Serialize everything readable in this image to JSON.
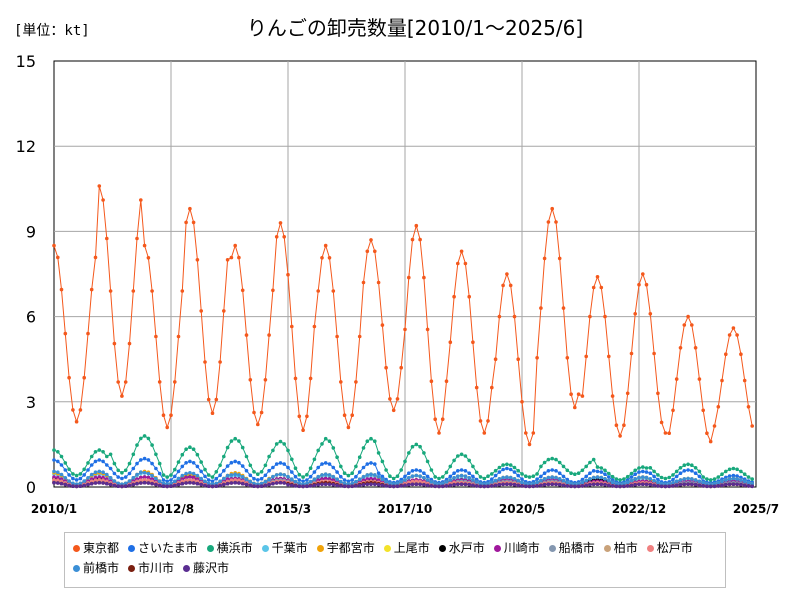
{
  "unit_label": "[単位：kt]",
  "chart_data": {
    "type": "line",
    "title": "りんごの卸売数量[2010/1～2025/6]",
    "ylim": [
      0,
      15
    ],
    "y_ticks": [
      "0",
      "3",
      "6",
      "9",
      "12",
      "15"
    ],
    "x_ticks": [
      "2010/1",
      "2012/8",
      "2015/3",
      "2017/10",
      "2020/5",
      "2022/12",
      "2025/7"
    ],
    "x_range": [
      "2010/1",
      "2025/7"
    ],
    "grid": true,
    "legend_position": "bottom",
    "series": [
      {
        "name": "東京都",
        "color": "#f4581c",
        "peaks": [
          8.5,
          10.6,
          8.5,
          9.8,
          8.5,
          9.3,
          8.5,
          8.7,
          9.2,
          8.3,
          7.5,
          9.8,
          7.4,
          7.5,
          6.0,
          5.6
        ],
        "troughs": [
          2.3,
          3.2,
          2.1,
          2.6,
          2.2,
          2.0,
          2.1,
          2.7,
          1.9,
          1.9,
          1.5,
          2.8,
          1.8,
          1.9,
          1.6,
          1.9
        ]
      },
      {
        "name": "さいたま市",
        "color": "#1f6fe5",
        "peaks": [
          0.95,
          1.0,
          0.9,
          0.9,
          0.85,
          0.85,
          0.6,
          0.6,
          0.65,
          0.6,
          0.55,
          0.6,
          0.4
        ],
        "troughs": [
          0.25,
          0.3,
          0.2,
          0.25,
          0.2,
          0.2,
          0.15,
          0.15,
          0.15,
          0.15,
          0.15,
          0.15,
          0.15
        ]
      },
      {
        "name": "横浜市",
        "color": "#18a87c",
        "peaks": [
          1.3,
          1.8,
          1.4,
          1.7,
          1.6,
          1.7,
          1.5,
          1.15,
          0.8,
          1.0,
          0.7,
          0.8,
          0.65
        ],
        "troughs": [
          0.4,
          0.5,
          0.35,
          0.45,
          0.35,
          0.4,
          0.3,
          0.3,
          0.35,
          0.45,
          0.25,
          0.3,
          0.25
        ]
      },
      {
        "name": "千葉市",
        "color": "#5bc5e8",
        "peaks": [
          0.45,
          0.5,
          0.4,
          0.45,
          0.4,
          0.4,
          0.3,
          0.3,
          0.3,
          0.3,
          0.25
        ],
        "troughs": [
          0.1,
          0.1,
          0.1,
          0.1,
          0.1,
          0.1,
          0.05,
          0.05,
          0.05,
          0.05,
          0.05
        ]
      },
      {
        "name": "宇都宮市",
        "color": "#f0a30a",
        "peaks": [
          0.5,
          0.55,
          0.45,
          0.5,
          0.45,
          0.45,
          0.4,
          0.4,
          0.35,
          0.35,
          0.35,
          0.3,
          0.3
        ],
        "troughs": [
          0.1,
          0.1,
          0.1,
          0.1,
          0.1,
          0.1,
          0.1,
          0.1,
          0.1,
          0.1,
          0.1,
          0.1,
          0.1
        ]
      },
      {
        "name": "上尾市",
        "color": "#f3e22a",
        "peaks": [
          0.2,
          0.2,
          0.2,
          0.2,
          0.15,
          0.15,
          0.15,
          0.15,
          0.1
        ],
        "troughs": [
          0.03,
          0.03,
          0.03,
          0.03,
          0.03,
          0.03,
          0.03,
          0.03,
          0.03
        ]
      },
      {
        "name": "水戸市",
        "color": "#000000",
        "peaks": [
          0.3,
          0.35,
          0.3,
          0.3,
          0.25,
          0.25,
          0.25,
          0.25,
          0.2,
          0.2
        ],
        "troughs": [
          0.05,
          0.05,
          0.05,
          0.05,
          0.05,
          0.05,
          0.05,
          0.05,
          0.05,
          0.05
        ]
      },
      {
        "name": "川崎市",
        "color": "#a0189c",
        "peaks": [
          0.35,
          0.35,
          0.3,
          0.3,
          0.25,
          0.25,
          0.2,
          0.2
        ],
        "troughs": [
          0.05,
          0.05,
          0.05,
          0.05,
          0.05,
          0.05,
          0.05,
          0.05
        ]
      },
      {
        "name": "船橋市",
        "color": "#8497b0",
        "peaks": [
          0.25,
          0.25,
          0.25,
          0.2,
          0.2,
          0.2,
          0.15,
          0.15
        ],
        "troughs": [
          0.05,
          0.05,
          0.05,
          0.05,
          0.05,
          0.05,
          0.05,
          0.05
        ]
      },
      {
        "name": "柏市",
        "color": "#c9a27a",
        "peaks": [
          0.2,
          0.2,
          0.2,
          0.15,
          0.15,
          0.15,
          0.1
        ],
        "troughs": [
          0.03,
          0.03,
          0.03,
          0.03,
          0.03,
          0.03,
          0.03
        ]
      },
      {
        "name": "松戸市",
        "color": "#f08080",
        "peaks": [
          0.25,
          0.25,
          0.2,
          0.2,
          0.15,
          0.15,
          0.1
        ],
        "troughs": [
          0.03,
          0.03,
          0.03,
          0.03,
          0.03,
          0.03,
          0.03
        ]
      },
      {
        "name": "前橋市",
        "color": "#3b8fd6",
        "peaks": [
          0.55,
          0.5,
          0.45,
          0.45,
          0.4,
          0.35,
          0.35,
          0.3
        ],
        "troughs": [
          0.1,
          0.1,
          0.1,
          0.1,
          0.1,
          0.1,
          0.1,
          0.1
        ]
      },
      {
        "name": "市川市",
        "color": "#7a1f10",
        "peaks": [
          0.15,
          0.15,
          0.15,
          0.1,
          0.1,
          0.1
        ],
        "troughs": [
          0.02,
          0.02,
          0.02,
          0.02,
          0.02,
          0.02
        ]
      },
      {
        "name": "藤沢市",
        "color": "#5a2d91",
        "peaks": [
          0.15,
          0.15,
          0.1,
          0.1,
          0.1,
          0.1
        ],
        "troughs": [
          0.02,
          0.02,
          0.02,
          0.02,
          0.02,
          0.02
        ]
      }
    ]
  }
}
